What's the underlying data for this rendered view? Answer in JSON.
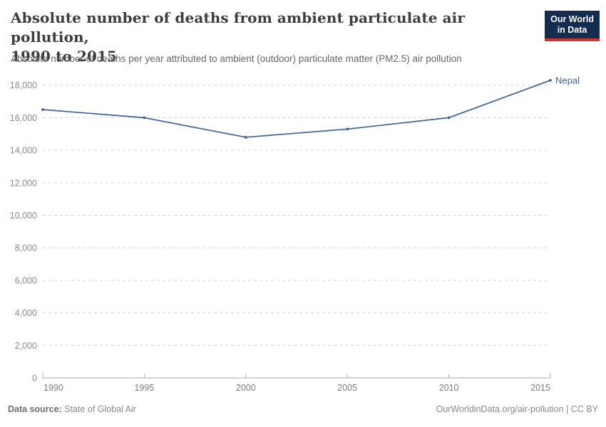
{
  "header": {
    "title_line1": "Absolute number of deaths from ambient particulate air pollution,",
    "title_line2": "1990 to 2015",
    "subtitle": "Absolute number of deaths per year attributed to ambient (outdoor) particulate matter (PM2.5) air pollution",
    "logo": {
      "line1": "Our World",
      "line2": "in Data",
      "bg_color": "#132c4f",
      "accent_color": "#cf342c"
    }
  },
  "chart_data": {
    "type": "line",
    "title": "Absolute number of deaths from ambient particulate air pollution, 1990 to 2015",
    "xlabel": "",
    "ylabel": "",
    "x": [
      1990,
      1995,
      2000,
      2005,
      2010,
      2015
    ],
    "xlim": [
      1990,
      2015
    ],
    "ylim": [
      0,
      18000
    ],
    "xtick_labels": [
      "1990",
      "1995",
      "2000",
      "2005",
      "2010",
      "2015"
    ],
    "yticks": [
      {
        "value": 0,
        "label": "0"
      },
      {
        "value": 2000,
        "label": "2,000"
      },
      {
        "value": 4000,
        "label": "4,000"
      },
      {
        "value": 6000,
        "label": "6,000"
      },
      {
        "value": 8000,
        "label": "8,000"
      },
      {
        "value": 10000,
        "label": "10,000"
      },
      {
        "value": 12000,
        "label": "12,000"
      },
      {
        "value": 14000,
        "label": "14,000"
      },
      {
        "value": 16000,
        "label": "16,000"
      },
      {
        "value": 18000,
        "label": "18,000"
      }
    ],
    "grid": "horizontal-dashed",
    "legend": "line-end-label",
    "series": [
      {
        "name": "Nepal",
        "color": "#3d649c",
        "values": [
          16500,
          16000,
          14800,
          15300,
          16000,
          18300
        ]
      }
    ]
  },
  "footer": {
    "datasource_label": "Data source:",
    "datasource_value": "State of Global Air",
    "credit": "OurWorldinData.org/air-pollution | CC BY"
  },
  "colors": {
    "line": "#3d649c",
    "gridline": "#d6d6d6",
    "axis": "#a8a8a8",
    "y_tick_label": "#8a8a8a",
    "x_tick_label": "#7d7d7d"
  }
}
